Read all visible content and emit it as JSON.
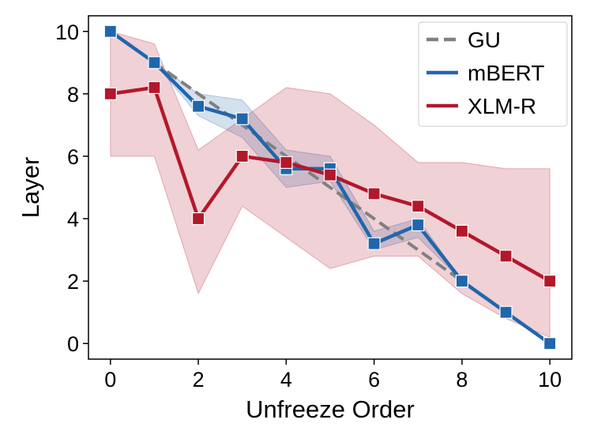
{
  "chart_data": {
    "type": "line",
    "title": "",
    "xlabel": "Unfreeze Order",
    "ylabel": "Layer",
    "xlim": [
      -0.5,
      10.5
    ],
    "ylim": [
      -0.5,
      10.5
    ],
    "xticks": [
      0,
      2,
      4,
      6,
      8,
      10
    ],
    "yticks": [
      0,
      2,
      4,
      6,
      8,
      10
    ],
    "xtick_labels": [
      "0",
      "2",
      "4",
      "6",
      "8",
      "10"
    ],
    "ytick_labels": [
      "0",
      "2",
      "4",
      "6",
      "8",
      "10"
    ],
    "grid": false,
    "legend_position": "top-right",
    "x": [
      0,
      1,
      2,
      3,
      4,
      5,
      6,
      7,
      8,
      9,
      10
    ],
    "series": [
      {
        "name": "GU",
        "color": "#808080",
        "style": "dashed",
        "marker": "none",
        "values": [
          10,
          9,
          8,
          7,
          6,
          5,
          4,
          3,
          2,
          1,
          0
        ]
      },
      {
        "name": "mBERT",
        "color": "#2166ac",
        "style": "solid",
        "marker": "square",
        "values": [
          10,
          9,
          7.6,
          7.2,
          5.6,
          5.6,
          3.2,
          3.8,
          2,
          1,
          0
        ],
        "band_lower": [
          10,
          9,
          7.3,
          6.6,
          5.0,
          5.2,
          3.0,
          3.4,
          2,
          1,
          0
        ],
        "band_upper": [
          10,
          9,
          8.0,
          7.8,
          6.2,
          6.0,
          3.6,
          4.0,
          2,
          1,
          0
        ]
      },
      {
        "name": "XLM-R",
        "color": "#b2182b",
        "style": "solid",
        "marker": "square",
        "values": [
          8,
          8.2,
          4,
          6,
          5.8,
          5.4,
          4.8,
          4.4,
          3.6,
          2.8,
          2
        ],
        "band_lower": [
          6,
          6,
          1.6,
          4.4,
          3.4,
          2.4,
          2.8,
          2.8,
          1.6,
          0.8,
          0.2
        ],
        "band_upper": [
          10,
          9.6,
          6.2,
          7.2,
          8.2,
          8.0,
          7.0,
          5.8,
          5.8,
          5.6,
          5.6
        ]
      }
    ]
  }
}
